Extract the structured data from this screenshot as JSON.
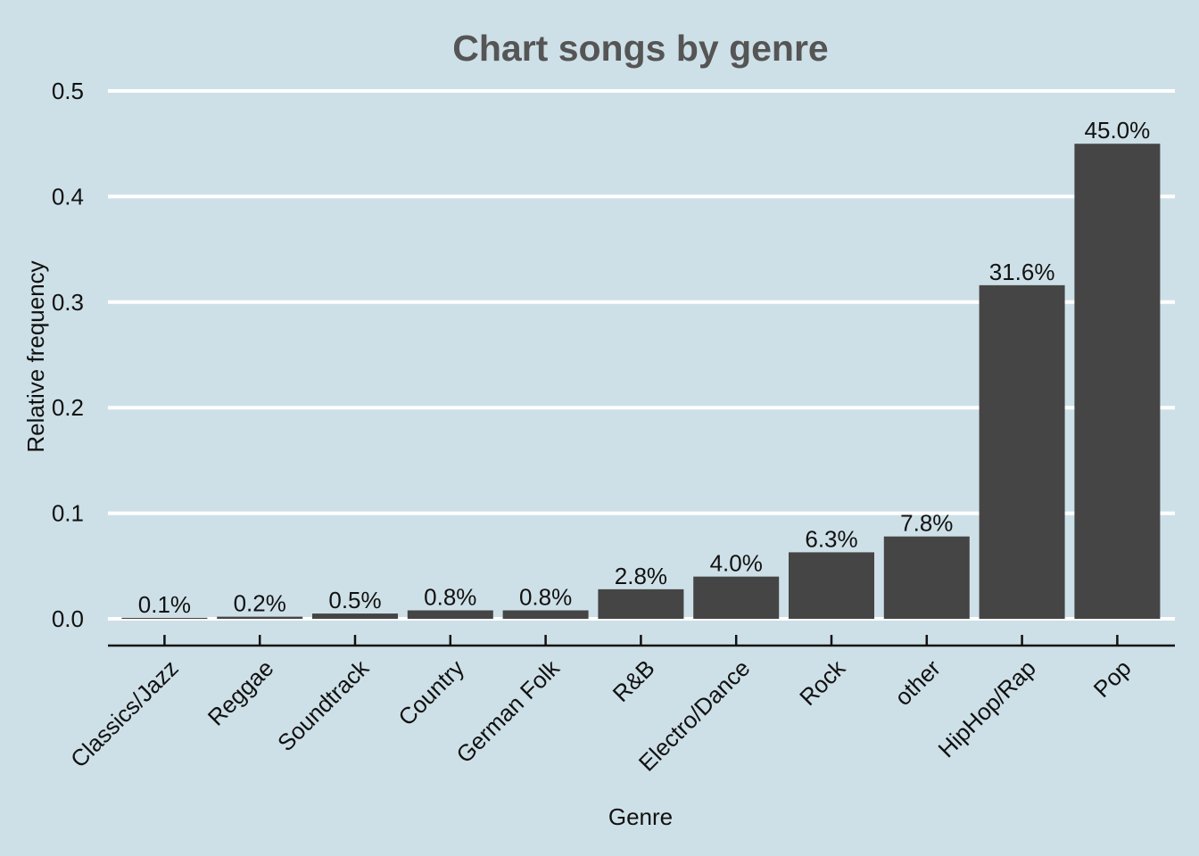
{
  "colors": {
    "background": "#cee0e7",
    "bar": "#454545",
    "grid": "#ffffff",
    "axis": "#111111",
    "title": "#555555"
  },
  "chart_data": {
    "type": "bar",
    "title": "Chart songs by genre",
    "xlabel": "Genre",
    "ylabel": "Relative frequency",
    "ylim": [
      0,
      0.5
    ],
    "yticks": [
      "0.0",
      "0.1",
      "0.2",
      "0.3",
      "0.4",
      "0.5"
    ],
    "grid": "horizontal",
    "categories": [
      "Classics/Jazz",
      "Reggae",
      "Soundtrack",
      "Country",
      "German Folk",
      "R&B",
      "Electro/Dance",
      "Rock",
      "other",
      "HipHop/Rap",
      "Pop"
    ],
    "values": [
      0.001,
      0.002,
      0.005,
      0.008,
      0.008,
      0.028,
      0.04,
      0.063,
      0.078,
      0.316,
      0.45
    ],
    "data_labels": [
      "0.1%",
      "0.2%",
      "0.5%",
      "0.8%",
      "0.8%",
      "2.8%",
      "4.0%",
      "6.3%",
      "7.8%",
      "31.6%",
      "45.0%"
    ]
  }
}
